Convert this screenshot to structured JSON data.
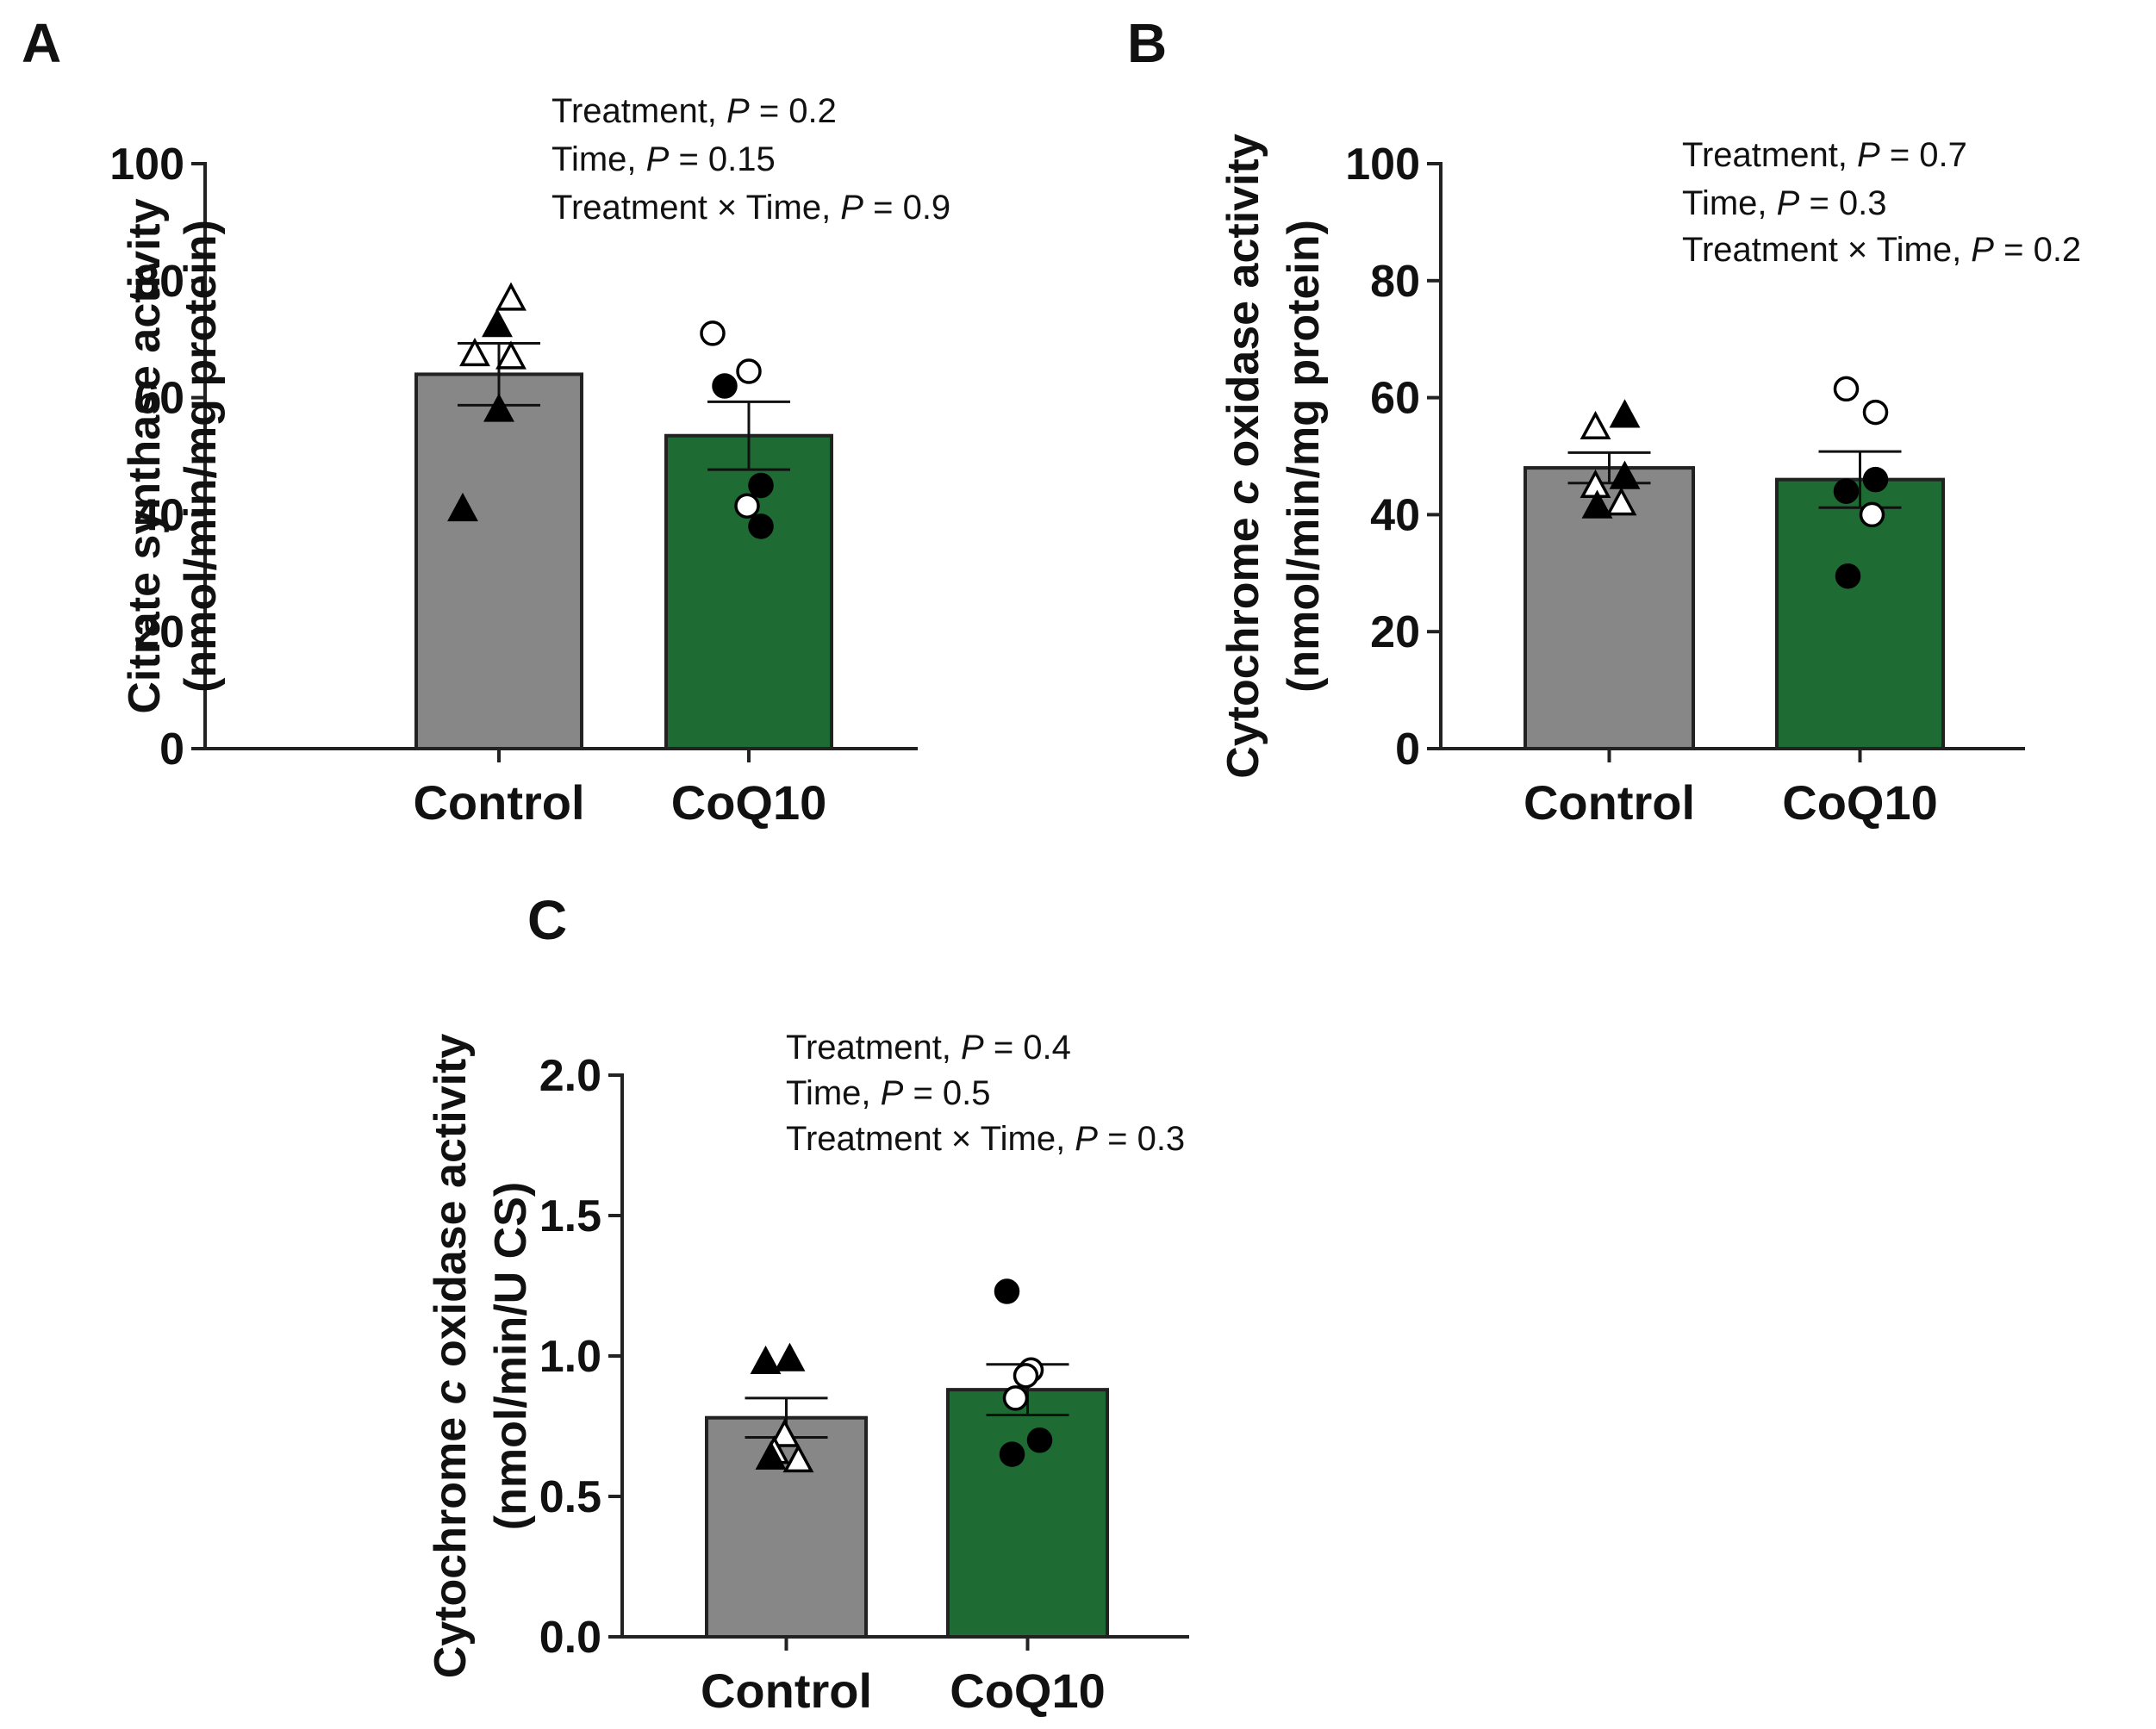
{
  "figure": {
    "colors": {
      "control_bar": "#878787",
      "coq10_bar": "#1f6b34",
      "axis": "#222222",
      "marker": "#000000",
      "error_bar": "#111111"
    }
  },
  "chart_data": [
    {
      "panel": "A",
      "type": "bar",
      "categories": [
        "Control",
        "CoQ10"
      ],
      "ylabel_line1": "Citrate synthase activity",
      "ylabel_line2": "(nmol/min/mg protein)",
      "ylim": [
        0,
        100
      ],
      "yticks": [
        0,
        20,
        40,
        60,
        80,
        100
      ],
      "tick_labels": [
        "0",
        "20",
        "40",
        "60",
        "80",
        "100"
      ],
      "decimals": 0,
      "values": [
        64,
        53.5
      ],
      "sem": [
        5.3,
        5.8
      ],
      "stats": [
        {
          "label": "Treatment, ",
          "p": "0.2"
        },
        {
          "label": "Time, ",
          "p": "0.15"
        },
        {
          "label": "Treatment × Time, ",
          "p": "0.9"
        }
      ],
      "points": [
        [
          {
            "y": 41,
            "shape": "triangle",
            "filled": true
          },
          {
            "y": 58,
            "shape": "triangle",
            "filled": true
          },
          {
            "y": 67.5,
            "shape": "triangle",
            "filled": false
          },
          {
            "y": 67,
            "shape": "triangle",
            "filled": false
          },
          {
            "y": 72.5,
            "shape": "triangle",
            "filled": true
          },
          {
            "y": 77,
            "shape": "triangle",
            "filled": false
          }
        ],
        [
          {
            "y": 71,
            "shape": "circle",
            "filled": false
          },
          {
            "y": 64.5,
            "shape": "circle",
            "filled": false
          },
          {
            "y": 62,
            "shape": "circle",
            "filled": true
          },
          {
            "y": 45,
            "shape": "circle",
            "filled": true
          },
          {
            "y": 41.5,
            "shape": "circle",
            "filled": false
          },
          {
            "y": 38,
            "shape": "circle",
            "filled": true
          }
        ]
      ]
    },
    {
      "panel": "B",
      "type": "bar",
      "categories": [
        "Control",
        "CoQ10"
      ],
      "ylabel_line1": "Cytochrome c oxidase activity",
      "ylabel_line2": "(nmol/min/mg protein)",
      "ylim": [
        0,
        100
      ],
      "yticks": [
        0,
        20,
        40,
        60,
        80,
        100
      ],
      "tick_labels": [
        "0",
        "20",
        "40",
        "60",
        "80",
        "100"
      ],
      "decimals": 0,
      "values": [
        48,
        46
      ],
      "sem": [
        2.6,
        4.8
      ],
      "stats": [
        {
          "label": "Treatment, ",
          "p": "0.7"
        },
        {
          "label": "Time, ",
          "p": "0.3"
        },
        {
          "label": "Treatment × Time, ",
          "p": "0.2"
        }
      ],
      "points": [
        [
          {
            "y": 55,
            "shape": "triangle",
            "filled": false
          },
          {
            "y": 57,
            "shape": "triangle",
            "filled": true
          },
          {
            "y": 46.5,
            "shape": "triangle",
            "filled": true
          },
          {
            "y": 45,
            "shape": "triangle",
            "filled": false
          },
          {
            "y": 42,
            "shape": "triangle",
            "filled": false
          },
          {
            "y": 41.5,
            "shape": "triangle",
            "filled": true
          }
        ],
        [
          {
            "y": 61.5,
            "shape": "circle",
            "filled": false
          },
          {
            "y": 57.5,
            "shape": "circle",
            "filled": false
          },
          {
            "y": 46,
            "shape": "circle",
            "filled": true
          },
          {
            "y": 44,
            "shape": "circle",
            "filled": true
          },
          {
            "y": 40,
            "shape": "circle",
            "filled": false
          },
          {
            "y": 29.5,
            "shape": "circle",
            "filled": true
          }
        ]
      ]
    },
    {
      "panel": "C",
      "type": "bar",
      "categories": [
        "Control",
        "CoQ10"
      ],
      "ylabel_line1": "Cytochrome c oxidase activity",
      "ylabel_line2": "(nmol/min/U CS)",
      "ylim": [
        0,
        2.0
      ],
      "yticks": [
        0,
        0.5,
        1.0,
        1.5,
        2.0
      ],
      "tick_labels": [
        "0.0",
        "0.5",
        "1.0",
        "1.5",
        "2.0"
      ],
      "decimals": 1,
      "values": [
        0.78,
        0.88
      ],
      "sem": [
        0.07,
        0.09
      ],
      "stats": [
        {
          "label": "Treatment, ",
          "p": "0.4"
        },
        {
          "label": "Time, ",
          "p": "0.5"
        },
        {
          "label": "Treatment × Time, ",
          "p": "0.3"
        }
      ],
      "points": [
        [
          {
            "y": 0.98,
            "shape": "triangle",
            "filled": true
          },
          {
            "y": 0.99,
            "shape": "triangle",
            "filled": true
          },
          {
            "y": 0.72,
            "shape": "triangle",
            "filled": false
          },
          {
            "y": 0.66,
            "shape": "triangle",
            "filled": false
          },
          {
            "y": 0.63,
            "shape": "triangle",
            "filled": false
          },
          {
            "y": 0.64,
            "shape": "triangle",
            "filled": true
          }
        ],
        [
          {
            "y": 1.23,
            "shape": "circle",
            "filled": true
          },
          {
            "y": 0.95,
            "shape": "circle",
            "filled": false
          },
          {
            "y": 0.93,
            "shape": "circle",
            "filled": false
          },
          {
            "y": 0.85,
            "shape": "circle",
            "filled": false
          },
          {
            "y": 0.7,
            "shape": "circle",
            "filled": true
          },
          {
            "y": 0.65,
            "shape": "circle",
            "filled": true
          }
        ]
      ]
    }
  ]
}
